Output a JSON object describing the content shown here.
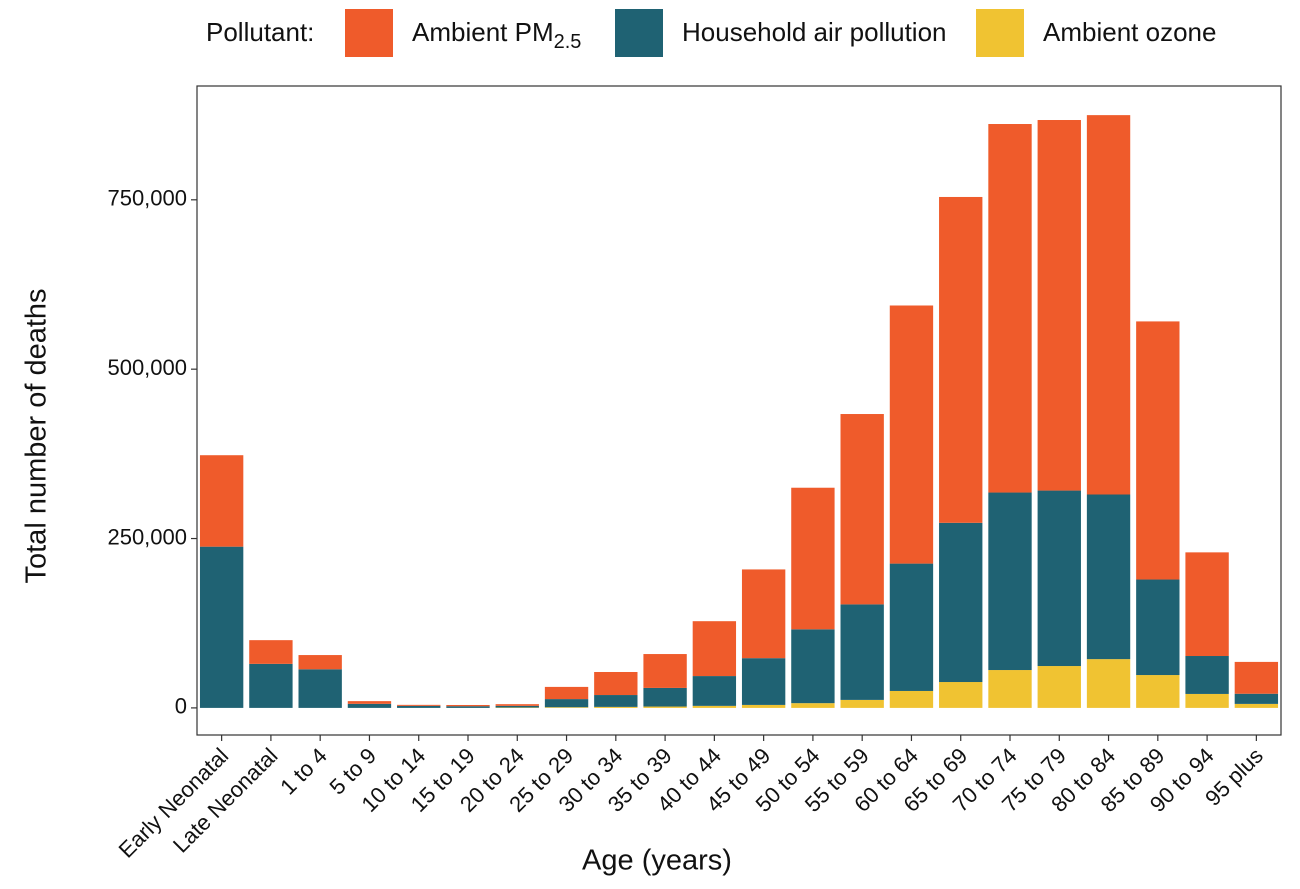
{
  "chart_data": {
    "type": "stacked-bar",
    "legend_title": "Pollutant:",
    "x_label": "Age (years)",
    "y_label": "Total number of deaths",
    "categories": [
      "Early Neonatal",
      "Late Neonatal",
      "1 to 4",
      "5 to 9",
      "10 to 14",
      "15 to 19",
      "20 to 24",
      "25 to 29",
      "30 to 34",
      "35 to 39",
      "40 to 44",
      "45 to 49",
      "50 to 54",
      "55 to 59",
      "60 to 64",
      "65 to 69",
      "70 to 74",
      "75 to 79",
      "80 to 84",
      "85 to 89",
      "90 to 94",
      "95 plus"
    ],
    "series": [
      {
        "name": "Ambient PM2.5",
        "color": "#ef5b2b",
        "values": [
          135000,
          35000,
          21000,
          4000,
          1500,
          1800,
          2500,
          18000,
          34000,
          50000,
          81000,
          131000,
          209000,
          281000,
          381000,
          481000,
          544000,
          547000,
          560000,
          381000,
          153000,
          47000
        ]
      },
      {
        "name": "Household air pollution",
        "color": "#1f6273",
        "values": [
          238000,
          65000,
          57000,
          6000,
          3000,
          2500,
          2500,
          12000,
          17500,
          27500,
          44000,
          69000,
          109000,
          141000,
          188000,
          235000,
          262000,
          259000,
          243000,
          141000,
          56000,
          15000
        ]
      },
      {
        "name": "Ambient ozone",
        "color": "#f0c332",
        "values": [
          0,
          0,
          0,
          0,
          0,
          0,
          500,
          1000,
          1500,
          2000,
          3000,
          4400,
          7000,
          11800,
          25000,
          38200,
          55900,
          61800,
          72000,
          48500,
          20600,
          5900
        ]
      }
    ],
    "stack_order": "bottom-up-reversed",
    "ylim": [
      -40000,
      918000
    ],
    "yticks": [
      0,
      {
        "value": 250000,
        "label": "250,000"
      },
      {
        "value": 500000,
        "label": "500,000"
      },
      {
        "value": 750000,
        "label": "750,000"
      }
    ],
    "legend_position": "top"
  }
}
